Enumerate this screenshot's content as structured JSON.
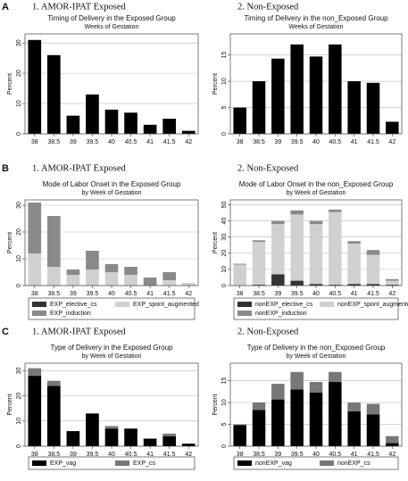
{
  "panel_labels": [
    "A",
    "B",
    "C"
  ],
  "chart_data": [
    {
      "type": "bar",
      "heading": "1. AMOR-IPAT Exposed",
      "title": "Timing of Delivery in the Exposed Group",
      "subtitle": "Weeks of Gestation",
      "ylabel": "Percent",
      "categories": [
        "38",
        "38.5",
        "39",
        "39.5",
        "40",
        "40.5",
        "41",
        "41.5",
        "42"
      ],
      "values": [
        31,
        26,
        6,
        13,
        8,
        7,
        3,
        5,
        1
      ],
      "color": "#000000",
      "ylim": [
        0,
        33
      ],
      "yticks": [
        0,
        10,
        20,
        30
      ],
      "grid": true
    },
    {
      "type": "bar",
      "heading": "2. Non-Exposed",
      "title": "Timing of Delivery in the non_Exposed Group",
      "subtitle": "Weeks of Gestation",
      "ylabel": "Percent",
      "categories": [
        "38",
        "38.5",
        "39",
        "39.5",
        "40",
        "40.5",
        "41",
        "41.5",
        "42"
      ],
      "values": [
        5,
        10,
        14.3,
        17,
        14.7,
        17,
        10,
        9.7,
        2.3
      ],
      "color": "#000000",
      "ylim": [
        0,
        19
      ],
      "yticks": [
        0,
        5,
        10,
        15
      ],
      "grid": true
    },
    {
      "type": "stacked_bar",
      "heading": "1. AMOR-IPAT Exposed",
      "title": "Mode of Labor Onset in the Exposed Group",
      "subtitle": "by Week of Gestation",
      "ylabel": "Percent",
      "categories": [
        "38",
        "38.5",
        "39",
        "39.5",
        "40",
        "40.5",
        "41",
        "41.5",
        "42"
      ],
      "series": [
        {
          "name": "EXP_elective_cs",
          "color": "#333333",
          "values": [
            0,
            0,
            0,
            0,
            0,
            0,
            0,
            0,
            0
          ]
        },
        {
          "name": "EXP_spont_augmented",
          "color": "#d0d0d0",
          "values": [
            12,
            7,
            4,
            6,
            5,
            4,
            0,
            2,
            1
          ]
        },
        {
          "name": "EXP_induction",
          "color": "#8a8a8a",
          "values": [
            19,
            19,
            2,
            7,
            3,
            3,
            3,
            3,
            0
          ]
        }
      ],
      "ylim": [
        0,
        32
      ],
      "yticks": [
        0,
        10,
        20,
        30
      ],
      "grid": true
    },
    {
      "type": "stacked_bar",
      "heading": "2. Non-Exposed",
      "title": "Mode of Labor Onset in the non_Exposed Group",
      "subtitle": "by Week of Gestation",
      "ylabel": "Percent",
      "categories": [
        "38",
        "38.5",
        "39",
        "39.5",
        "40",
        "40.5",
        "41",
        "41.5",
        "42"
      ],
      "series": [
        {
          "name": "nonEXP_elective_cs",
          "color": "#333333",
          "values": [
            0,
            0.5,
            7,
            3,
            1,
            0.5,
            1,
            1,
            0.5
          ]
        },
        {
          "name": "nonEXP_spont_augmented",
          "color": "#d0d0d0",
          "values": [
            13,
            26.5,
            31,
            41,
            37,
            45,
            25,
            18,
            2.5
          ]
        },
        {
          "name": "nonEXP_induction",
          "color": "#8a8a8a",
          "values": [
            0.5,
            1,
            2,
            2.5,
            2,
            1.5,
            1.5,
            3,
            1
          ]
        }
      ],
      "ylim": [
        0,
        53
      ],
      "yticks": [
        0,
        10,
        20,
        30,
        40,
        50
      ],
      "grid": true
    },
    {
      "type": "stacked_bar",
      "heading": "1. AMOR-IPAT Exposed",
      "title": "Type of Delivery in the Exposed Group",
      "subtitle": "by Week of Gestation",
      "ylabel": "Percent",
      "categories": [
        "38",
        "38.5",
        "39",
        "39.5",
        "40",
        "40.5",
        "41",
        "41.5",
        "42"
      ],
      "series": [
        {
          "name": "EXP_vag",
          "color": "#000000",
          "values": [
            28,
            24,
            6,
            13,
            7,
            7,
            3,
            4,
            1
          ]
        },
        {
          "name": "EXP_cs",
          "color": "#777777",
          "values": [
            3,
            2,
            0,
            0,
            1,
            0,
            0,
            1,
            0
          ]
        }
      ],
      "ylim": [
        0,
        33
      ],
      "yticks": [
        0,
        10,
        20,
        30
      ],
      "grid": true
    },
    {
      "type": "stacked_bar",
      "heading": "2. Non-Exposed",
      "title": "Type of Delivery in the non_Exposed Group",
      "subtitle": "by Week of Gestation",
      "ylabel": "Percent",
      "categories": [
        "38",
        "38.5",
        "39",
        "39.5",
        "40",
        "40.5",
        "41",
        "41.5",
        "42"
      ],
      "series": [
        {
          "name": "nonEXP_vag",
          "color": "#000000",
          "values": [
            4.8,
            8.3,
            10.7,
            13,
            12.3,
            14.7,
            8,
            7.3,
            0.7
          ]
        },
        {
          "name": "nonEXP_cs",
          "color": "#777777",
          "values": [
            0.2,
            1.7,
            3.6,
            4,
            2.4,
            2.3,
            2,
            2.4,
            1.6
          ]
        }
      ],
      "ylim": [
        0,
        19
      ],
      "yticks": [
        0,
        5,
        10,
        15
      ],
      "grid": true
    }
  ]
}
